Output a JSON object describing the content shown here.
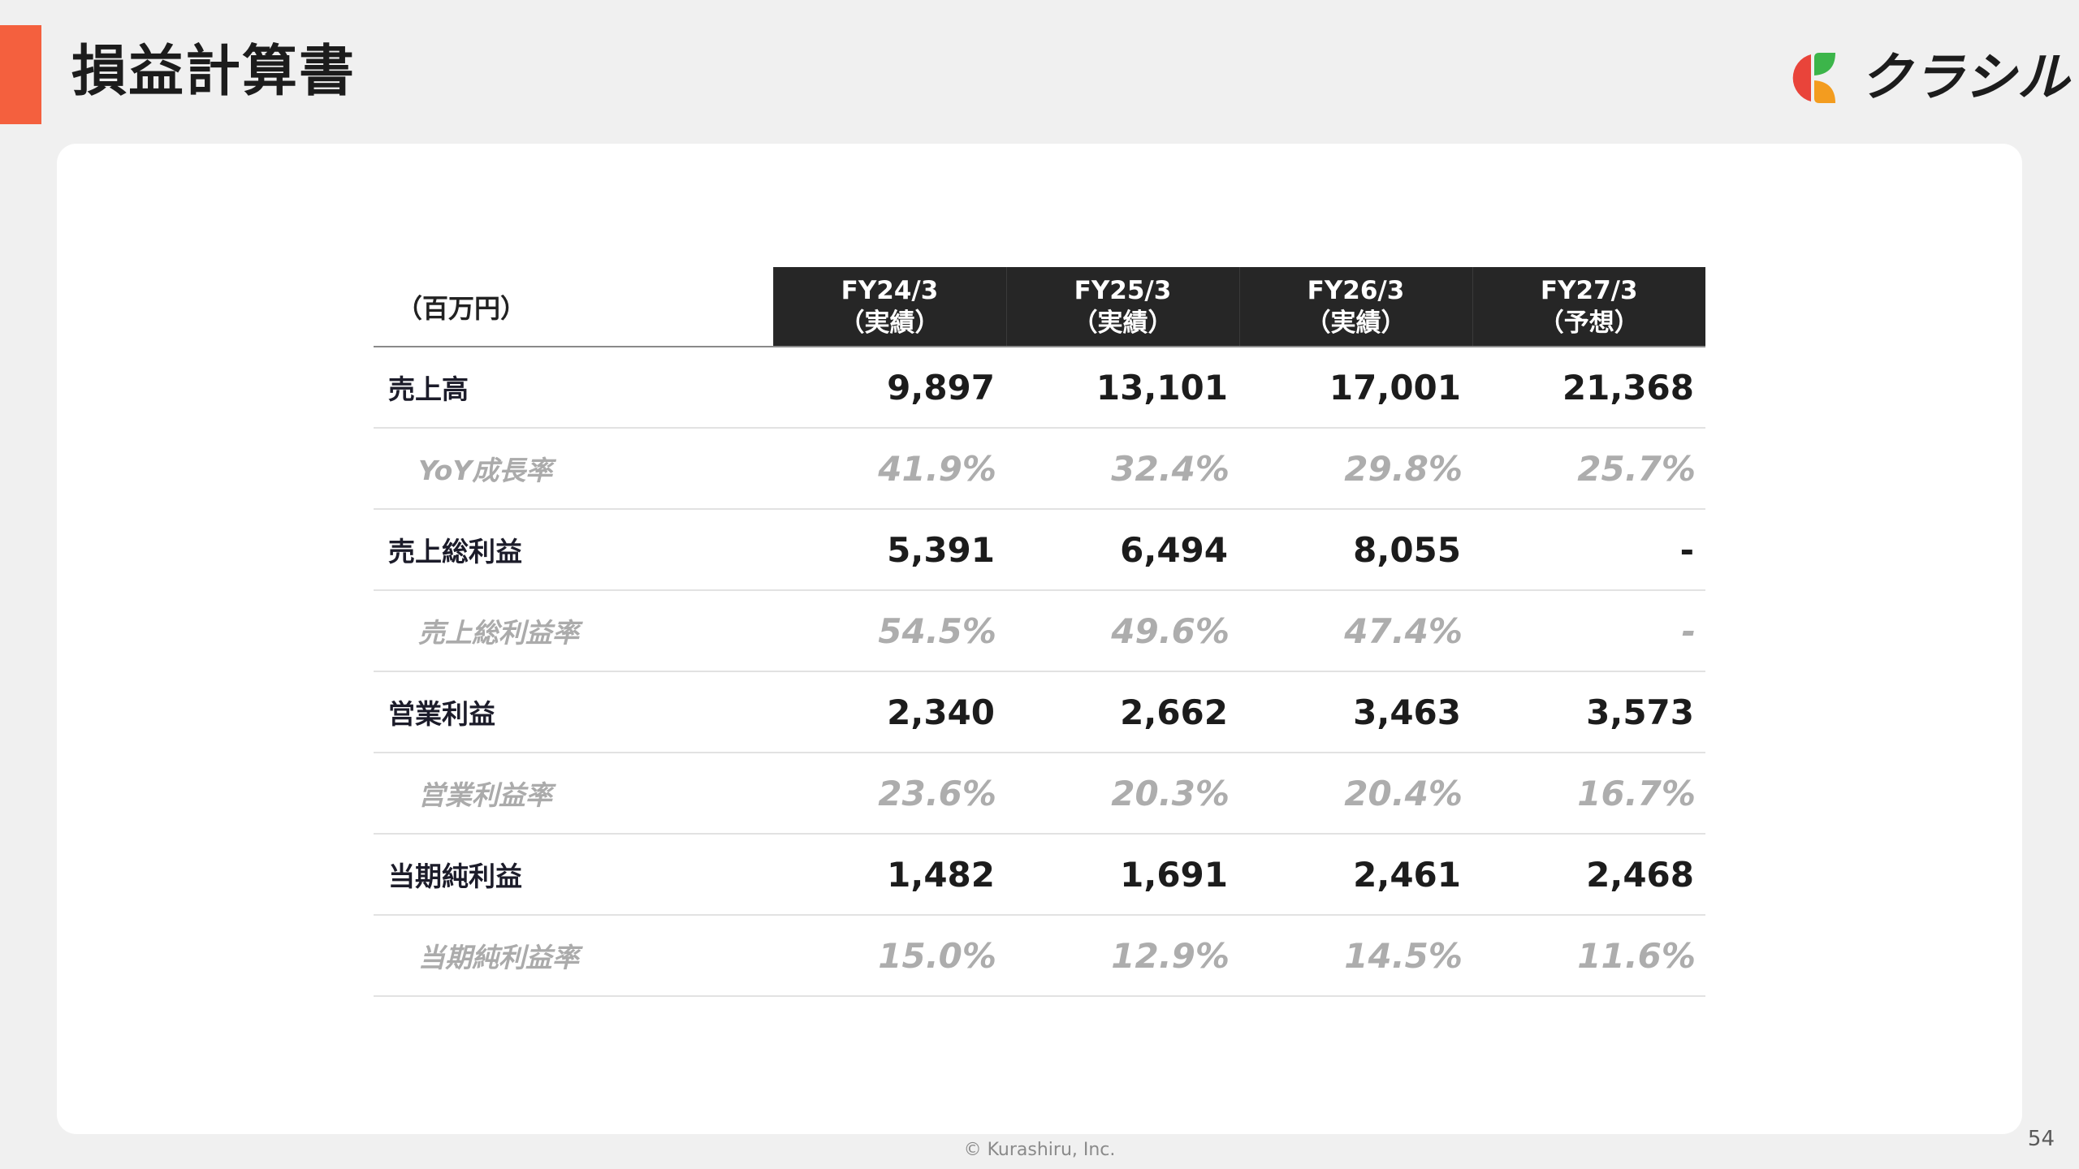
{
  "header": {
    "title": "損益計算書",
    "accent_color": "#f4603e"
  },
  "logo": {
    "text": "クラシル",
    "mark_icon": "kurashiru-k-icon",
    "mark_colors": [
      "#e9443a",
      "#f39c1f",
      "#3cb54a"
    ]
  },
  "table": {
    "unit_label": "（百万円）",
    "columns": [
      {
        "period": "FY24/3",
        "kind": "（実績）"
      },
      {
        "period": "FY25/3",
        "kind": "（実績）"
      },
      {
        "period": "FY26/3",
        "kind": "（実績）"
      },
      {
        "period": "FY27/3",
        "kind": "（予想）"
      }
    ],
    "rows": [
      {
        "label": "売上高",
        "type": "main",
        "values": [
          "9,897",
          "13,101",
          "17,001",
          "21,368"
        ]
      },
      {
        "label": "YoY成長率",
        "type": "ratio",
        "values": [
          "41.9%",
          "32.4%",
          "29.8%",
          "25.7%"
        ]
      },
      {
        "label": "売上総利益",
        "type": "main",
        "values": [
          "5,391",
          "6,494",
          "8,055",
          "-"
        ]
      },
      {
        "label": "売上総利益率",
        "type": "ratio",
        "values": [
          "54.5%",
          "49.6%",
          "47.4%",
          "-"
        ]
      },
      {
        "label": "営業利益",
        "type": "main",
        "values": [
          "2,340",
          "2,662",
          "3,463",
          "3,573"
        ]
      },
      {
        "label": "営業利益率",
        "type": "ratio",
        "values": [
          "23.6%",
          "20.3%",
          "20.4%",
          "16.7%"
        ]
      },
      {
        "label": "当期純利益",
        "type": "main",
        "values": [
          "1,482",
          "1,691",
          "2,461",
          "2,468"
        ]
      },
      {
        "label": "当期純利益率",
        "type": "ratio",
        "values": [
          "15.0%",
          "12.9%",
          "14.5%",
          "11.6%"
        ]
      }
    ]
  },
  "footer": {
    "copyright": "© Kurashiru, Inc.",
    "page_number": "54"
  }
}
